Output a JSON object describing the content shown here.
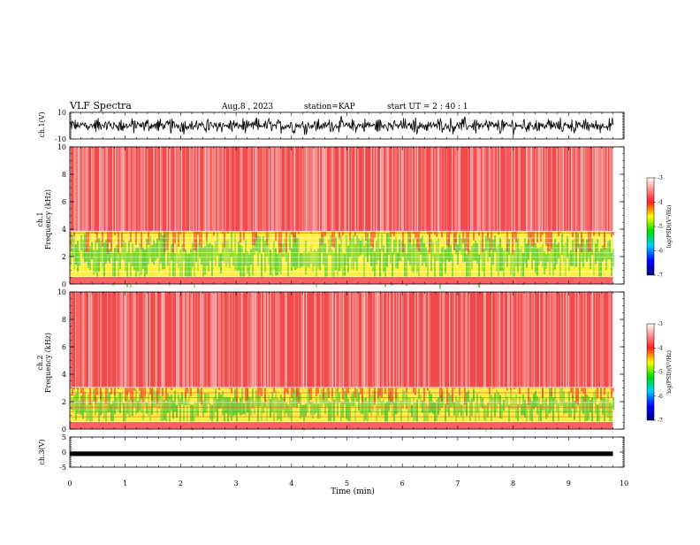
{
  "header": {
    "title": "VLF Spectra",
    "date": "Aug.8 , 2023",
    "station": "station=KAP",
    "start": "start UT = 2 : 40 : 1"
  },
  "colors": {
    "spectrogram_bg": "#f04a4a",
    "band_low": "#ffee44",
    "band_green": "#44cc33",
    "waveform": "#000000"
  },
  "chart_data": [
    {
      "type": "line",
      "panel": "ch1-waveform",
      "ylabel": "ch.1(V)",
      "ylim": [
        -10,
        10
      ],
      "yticks": [
        "10",
        "-10"
      ],
      "xlim": [
        0,
        10
      ],
      "note_series": "noise waveform, amplitude approx +/-5 V, data ends ~9.8 min"
    },
    {
      "type": "heatmap",
      "panel": "ch1-spectrogram",
      "ylabel": "ch.1\nFrequency (kHz)",
      "ylim": [
        0,
        10
      ],
      "yticks": [
        "0",
        "2",
        "4",
        "6",
        "8",
        "10"
      ],
      "xlim": [
        0,
        10
      ],
      "strong_band_khz": [
        0.5,
        3.8
      ],
      "colorbar": {
        "label": "log(PSD)(V²/Hz)",
        "range": [
          -7,
          -3
        ],
        "ticks": [
          "-3",
          "-4",
          "-5",
          "-6",
          "-7"
        ]
      }
    },
    {
      "type": "heatmap",
      "panel": "ch2-spectrogram",
      "ylabel": "ch.2\nFrequency (kHz)",
      "ylim": [
        0,
        10
      ],
      "yticks": [
        "0",
        "2",
        "4",
        "6",
        "8",
        "10"
      ],
      "xlim": [
        0,
        10
      ],
      "strong_band_khz": [
        0.5,
        3.0
      ],
      "colorbar": {
        "label": "log(PSD)(V²/Hz)",
        "range": [
          -7,
          -3
        ],
        "ticks": [
          "-3",
          "-4",
          "-5",
          "-6",
          "-7"
        ]
      }
    },
    {
      "type": "line",
      "panel": "ch3-waveform",
      "ylabel": "ch.3(V)",
      "ylim": [
        -5,
        5
      ],
      "yticks": [
        "5",
        "0",
        "-5"
      ],
      "xlim": [
        0,
        10
      ],
      "note_series": "near-constant level approx -0.5 V with small jitter"
    }
  ],
  "xaxis": {
    "label": "Time (min)",
    "ticks": [
      "0",
      "1",
      "2",
      "3",
      "4",
      "5",
      "6",
      "7",
      "8",
      "9",
      "10"
    ]
  },
  "colorbar_label": "log(PSD)(V²/Hz)"
}
